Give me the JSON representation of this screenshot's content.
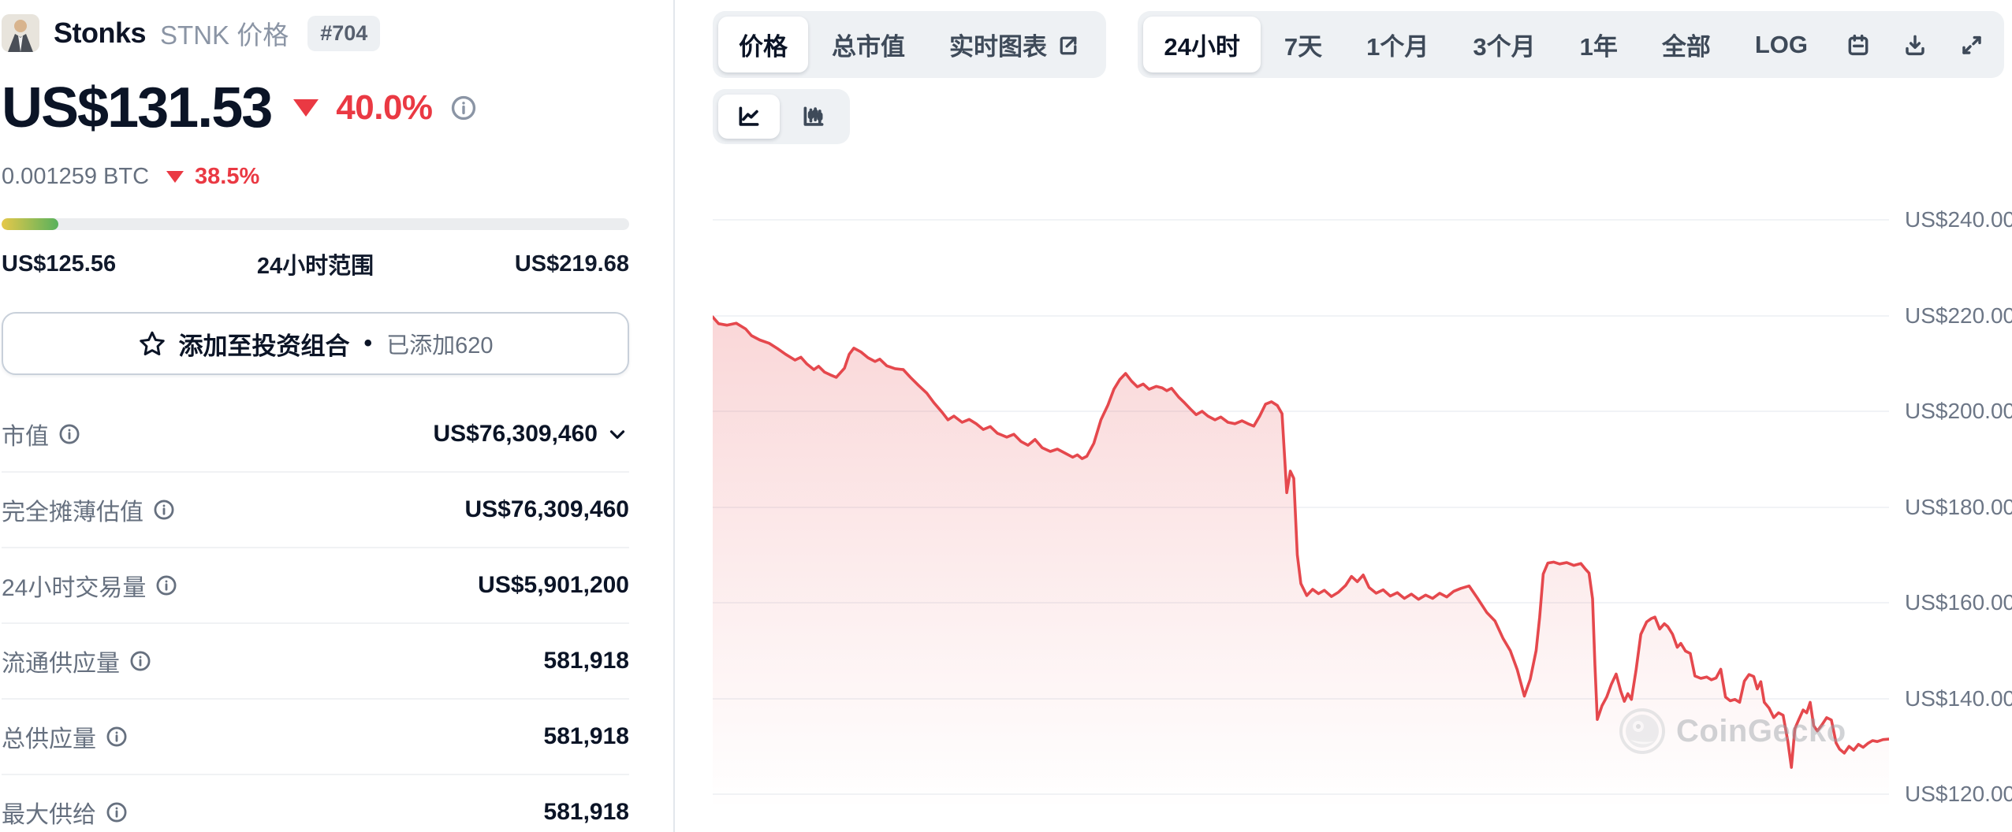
{
  "coin": {
    "name": "Stonks",
    "ticker_label": "STNK 价格",
    "rank": "#704"
  },
  "price": {
    "value": "US$131.53",
    "change_pct": "40.0%",
    "direction": "down",
    "btc_value": "0.001259 BTC",
    "btc_change_pct": "38.5%"
  },
  "range": {
    "low": "US$125.56",
    "label": "24小时范围",
    "high": "US$219.68",
    "progress_pct": 9
  },
  "portfolio": {
    "label": "添加至投资组合",
    "bullet": "•",
    "added_text": "已添加620"
  },
  "stats": {
    "rows": [
      {
        "label": "市值",
        "value": "US$76,309,460",
        "has_chevron": true
      },
      {
        "label": "完全摊薄估值",
        "value": "US$76,309,460"
      },
      {
        "label": "24小时交易量",
        "value": "US$5,901,200"
      },
      {
        "label": "流通供应量",
        "value": "581,918"
      },
      {
        "label": "总供应量",
        "value": "581,918"
      },
      {
        "label": "最大供给",
        "value": "581,918"
      }
    ]
  },
  "toolbar": {
    "tabs": [
      {
        "label": "价格",
        "active": true
      },
      {
        "label": "总市值",
        "active": false
      },
      {
        "label": "实时图表",
        "active": false,
        "external": true
      }
    ],
    "ranges": [
      {
        "label": "24小时",
        "active": true
      },
      {
        "label": "7天"
      },
      {
        "label": "1个月"
      },
      {
        "label": "3个月"
      },
      {
        "label": "1年"
      },
      {
        "label": "全部"
      },
      {
        "label": "LOG"
      }
    ]
  },
  "watermark": "CoinGecko",
  "colors": {
    "accent_red": "#ea3943",
    "line_red": "#e5484d",
    "text_dark": "#0b1426",
    "text_gray": "#66707f"
  },
  "chart_data": {
    "type": "area",
    "title": "Stonks (STNK) price, 24小时",
    "currency": "US$",
    "grid": true,
    "legend": false,
    "ylim": [
      113,
      249
    ],
    "y_axis": {
      "values": [
        240,
        220,
        200,
        180,
        160,
        140,
        120
      ],
      "labels": [
        "US$240.00",
        "US$220.00",
        "US$200.00",
        "US$180.00",
        "US$160.00",
        "US$140.00",
        "US$120.00"
      ]
    },
    "x_axis_note": "last 24 hours, unlabeled",
    "points": [
      [
        0.0,
        219.7
      ],
      [
        0.005,
        218.3
      ],
      [
        0.012,
        218.0
      ],
      [
        0.02,
        218.4
      ],
      [
        0.028,
        217.2
      ],
      [
        0.033,
        215.8
      ],
      [
        0.04,
        214.9
      ],
      [
        0.048,
        214.2
      ],
      [
        0.055,
        213.1
      ],
      [
        0.062,
        211.9
      ],
      [
        0.07,
        210.7
      ],
      [
        0.075,
        211.3
      ],
      [
        0.08,
        209.9
      ],
      [
        0.086,
        208.7
      ],
      [
        0.09,
        209.4
      ],
      [
        0.095,
        208.2
      ],
      [
        0.1,
        207.6
      ],
      [
        0.105,
        207.1
      ],
      [
        0.112,
        209.0
      ],
      [
        0.116,
        211.9
      ],
      [
        0.12,
        213.2
      ],
      [
        0.126,
        212.4
      ],
      [
        0.132,
        211.2
      ],
      [
        0.138,
        210.4
      ],
      [
        0.142,
        210.9
      ],
      [
        0.148,
        209.5
      ],
      [
        0.155,
        208.9
      ],
      [
        0.162,
        208.7
      ],
      [
        0.168,
        207.1
      ],
      [
        0.175,
        205.4
      ],
      [
        0.182,
        203.8
      ],
      [
        0.188,
        201.8
      ],
      [
        0.195,
        199.8
      ],
      [
        0.2,
        198.2
      ],
      [
        0.205,
        199.0
      ],
      [
        0.212,
        197.7
      ],
      [
        0.218,
        198.3
      ],
      [
        0.224,
        197.4
      ],
      [
        0.23,
        196.2
      ],
      [
        0.236,
        196.8
      ],
      [
        0.242,
        195.4
      ],
      [
        0.25,
        194.6
      ],
      [
        0.256,
        195.2
      ],
      [
        0.262,
        193.7
      ],
      [
        0.268,
        192.9
      ],
      [
        0.274,
        194.1
      ],
      [
        0.28,
        192.4
      ],
      [
        0.287,
        191.6
      ],
      [
        0.293,
        192.1
      ],
      [
        0.3,
        191.2
      ],
      [
        0.306,
        190.4
      ],
      [
        0.31,
        190.9
      ],
      [
        0.314,
        190.1
      ],
      [
        0.318,
        190.6
      ],
      [
        0.324,
        193.3
      ],
      [
        0.33,
        198.2
      ],
      [
        0.336,
        201.3
      ],
      [
        0.341,
        204.6
      ],
      [
        0.346,
        206.6
      ],
      [
        0.351,
        207.9
      ],
      [
        0.356,
        206.3
      ],
      [
        0.361,
        205.1
      ],
      [
        0.366,
        205.7
      ],
      [
        0.371,
        204.6
      ],
      [
        0.377,
        205.2
      ],
      [
        0.382,
        204.9
      ],
      [
        0.386,
        204.3
      ],
      [
        0.39,
        204.8
      ],
      [
        0.396,
        203.0
      ],
      [
        0.401,
        201.8
      ],
      [
        0.406,
        200.5
      ],
      [
        0.411,
        199.3
      ],
      [
        0.416,
        200.0
      ],
      [
        0.421,
        199.0
      ],
      [
        0.427,
        198.2
      ],
      [
        0.432,
        198.8
      ],
      [
        0.438,
        197.7
      ],
      [
        0.444,
        197.4
      ],
      [
        0.45,
        198.0
      ],
      [
        0.455,
        197.4
      ],
      [
        0.46,
        196.9
      ],
      [
        0.465,
        199.0
      ],
      [
        0.47,
        201.5
      ],
      [
        0.475,
        202.0
      ],
      [
        0.48,
        201.2
      ],
      [
        0.484,
        199.5
      ],
      [
        0.488,
        183.0
      ],
      [
        0.491,
        187.5
      ],
      [
        0.494,
        186.0
      ],
      [
        0.497,
        170.0
      ],
      [
        0.5,
        164.0
      ],
      [
        0.505,
        161.5
      ],
      [
        0.51,
        162.8
      ],
      [
        0.515,
        161.9
      ],
      [
        0.52,
        162.6
      ],
      [
        0.526,
        161.3
      ],
      [
        0.532,
        162.2
      ],
      [
        0.538,
        163.6
      ],
      [
        0.543,
        165.5
      ],
      [
        0.548,
        164.4
      ],
      [
        0.553,
        165.8
      ],
      [
        0.558,
        163.2
      ],
      [
        0.564,
        162.0
      ],
      [
        0.57,
        162.7
      ],
      [
        0.576,
        161.4
      ],
      [
        0.582,
        162.1
      ],
      [
        0.588,
        160.9
      ],
      [
        0.594,
        161.8
      ],
      [
        0.6,
        160.7
      ],
      [
        0.606,
        161.6
      ],
      [
        0.612,
        160.9
      ],
      [
        0.618,
        162.0
      ],
      [
        0.624,
        161.2
      ],
      [
        0.63,
        162.4
      ],
      [
        0.636,
        163.0
      ],
      [
        0.643,
        163.5
      ],
      [
        0.65,
        161.0
      ],
      [
        0.658,
        158.0
      ],
      [
        0.665,
        156.2
      ],
      [
        0.672,
        152.5
      ],
      [
        0.678,
        150.0
      ],
      [
        0.684,
        146.0
      ],
      [
        0.69,
        140.5
      ],
      [
        0.695,
        144.0
      ],
      [
        0.7,
        150.0
      ],
      [
        0.703,
        157.0
      ],
      [
        0.706,
        166.0
      ],
      [
        0.71,
        168.3
      ],
      [
        0.715,
        168.5
      ],
      [
        0.72,
        168.1
      ],
      [
        0.726,
        168.4
      ],
      [
        0.732,
        167.8
      ],
      [
        0.738,
        168.2
      ],
      [
        0.742,
        167.0
      ],
      [
        0.745,
        166.2
      ],
      [
        0.748,
        160.8
      ],
      [
        0.75,
        147.0
      ],
      [
        0.752,
        135.6
      ],
      [
        0.756,
        138.5
      ],
      [
        0.76,
        140.3
      ],
      [
        0.764,
        143.0
      ],
      [
        0.768,
        145.1
      ],
      [
        0.772,
        141.5
      ],
      [
        0.775,
        139.4
      ],
      [
        0.778,
        141.0
      ],
      [
        0.781,
        139.8
      ],
      [
        0.785,
        146.0
      ],
      [
        0.789,
        153.4
      ],
      [
        0.794,
        156.0
      ],
      [
        0.798,
        156.7
      ],
      [
        0.801,
        157.0
      ],
      [
        0.805,
        154.5
      ],
      [
        0.809,
        155.6
      ],
      [
        0.812,
        155.0
      ],
      [
        0.816,
        153.4
      ],
      [
        0.82,
        150.7
      ],
      [
        0.823,
        151.5
      ],
      [
        0.827,
        149.9
      ],
      [
        0.831,
        149.4
      ],
      [
        0.835,
        144.7
      ],
      [
        0.84,
        144.2
      ],
      [
        0.845,
        144.5
      ],
      [
        0.849,
        143.9
      ],
      [
        0.853,
        144.3
      ],
      [
        0.857,
        146.1
      ],
      [
        0.861,
        140.3
      ],
      [
        0.865,
        139.5
      ],
      [
        0.869,
        139.8
      ],
      [
        0.873,
        139.2
      ],
      [
        0.877,
        143.6
      ],
      [
        0.881,
        145.0
      ],
      [
        0.885,
        144.6
      ],
      [
        0.888,
        142.0
      ],
      [
        0.891,
        143.5
      ],
      [
        0.894,
        139.2
      ],
      [
        0.898,
        138.0
      ],
      [
        0.902,
        136.0
      ],
      [
        0.906,
        137.0
      ],
      [
        0.91,
        136.5
      ],
      [
        0.914,
        131.0
      ],
      [
        0.917,
        125.6
      ],
      [
        0.92,
        133.7
      ],
      [
        0.923,
        135.4
      ],
      [
        0.927,
        137.6
      ],
      [
        0.93,
        137.0
      ],
      [
        0.933,
        139.2
      ],
      [
        0.936,
        134.3
      ],
      [
        0.939,
        133.2
      ],
      [
        0.943,
        134.5
      ],
      [
        0.947,
        136.0
      ],
      [
        0.951,
        135.5
      ],
      [
        0.955,
        130.7
      ],
      [
        0.958,
        129.4
      ],
      [
        0.962,
        128.6
      ],
      [
        0.966,
        130.0
      ],
      [
        0.97,
        129.2
      ],
      [
        0.974,
        130.4
      ],
      [
        0.978,
        129.8
      ],
      [
        0.982,
        130.6
      ],
      [
        0.986,
        131.2
      ],
      [
        0.99,
        131.0
      ],
      [
        0.995,
        131.4
      ],
      [
        1.0,
        131.5
      ]
    ]
  }
}
